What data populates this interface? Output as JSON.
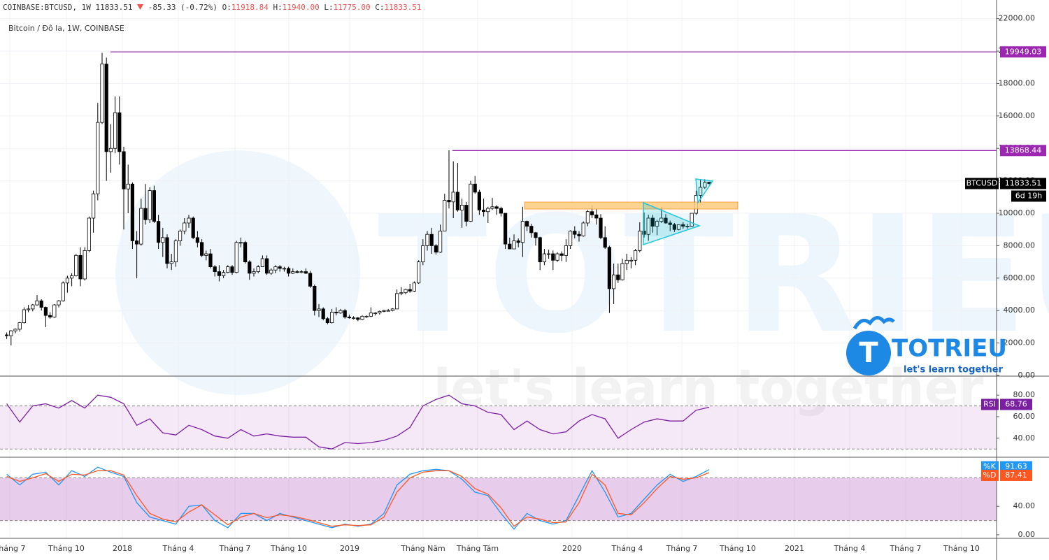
{
  "header": {
    "symbol": "COINBASE:BTCUSD, 1W",
    "price": "11833.51",
    "change": "-85.33 (-0.72%)",
    "ohlc": [
      {
        "key": "O:",
        "value": "11918.84"
      },
      {
        "key": "H:",
        "value": "11940.00"
      },
      {
        "key": "L:",
        "value": "11775.00"
      },
      {
        "key": "C:",
        "value": "11833.51"
      }
    ]
  },
  "logo": {
    "name": "TOTRIEU",
    "tagline": "let's learn together"
  },
  "chart_data": [
    {
      "type": "candlestick",
      "title": "Bitcoin / Đô la, 1W, COINBASE",
      "up_color": "#ffffff",
      "down_color": "#000000",
      "wick_color": "#000000",
      "candles": [
        [
          2500,
          2650,
          2250,
          2450
        ],
        [
          2450,
          2800,
          1850,
          2750
        ],
        [
          2750,
          2900,
          2600,
          2850
        ],
        [
          2850,
          3300,
          2700,
          3250
        ],
        [
          3250,
          4200,
          3200,
          4050
        ],
        [
          4050,
          4350,
          3900,
          4100
        ],
        [
          4100,
          4400,
          3950,
          4350
        ],
        [
          4350,
          4950,
          4300,
          4600
        ],
        [
          4600,
          4700,
          4000,
          4200
        ],
        [
          4200,
          4250,
          2980,
          3700
        ],
        [
          3700,
          3900,
          3500,
          3600
        ],
        [
          3600,
          4400,
          3550,
          4350
        ],
        [
          4350,
          4650,
          4200,
          4600
        ],
        [
          4600,
          5800,
          4550,
          5700
        ],
        [
          5700,
          6150,
          5100,
          6000
        ],
        [
          6000,
          6300,
          5500,
          6140
        ],
        [
          6140,
          7500,
          6100,
          7400
        ],
        [
          7400,
          7900,
          5500,
          5950
        ],
        [
          5950,
          7900,
          5850,
          7700
        ],
        [
          7700,
          9800,
          7600,
          9700
        ],
        [
          9700,
          11400,
          8800,
          11200
        ],
        [
          11200,
          16800,
          10800,
          15600
        ],
        [
          15600,
          19891,
          15500,
          19200
        ],
        [
          19200,
          19600,
          12000,
          13800
        ],
        [
          13800,
          15500,
          12500,
          14000
        ],
        [
          14000,
          17200,
          13700,
          16200
        ],
        [
          16200,
          17200,
          13000,
          13800
        ],
        [
          13800,
          14100,
          9000,
          11500
        ],
        [
          11500,
          13000,
          10000,
          11800
        ],
        [
          11800,
          11900,
          7800,
          8300
        ],
        [
          8300,
          8900,
          6000,
          8100
        ],
        [
          8100,
          10900,
          8000,
          10300
        ],
        [
          10300,
          11800,
          9300,
          9600
        ],
        [
          9600,
          11600,
          9400,
          11400
        ],
        [
          11400,
          11700,
          9400,
          9500
        ],
        [
          9500,
          9900,
          7800,
          8200
        ],
        [
          8200,
          9100,
          7300,
          8500
        ],
        [
          8500,
          8700,
          6600,
          6900
        ],
        [
          6900,
          7500,
          6500,
          7000
        ],
        [
          7000,
          8400,
          6700,
          8300
        ],
        [
          8300,
          9000,
          8000,
          8900
        ],
        [
          8900,
          9700,
          8700,
          9400
        ],
        [
          9400,
          9900,
          9100,
          9700
        ],
        [
          9700,
          9800,
          8400,
          8500
        ],
        [
          8500,
          8900,
          7900,
          8200
        ],
        [
          8200,
          8400,
          7300,
          7400
        ],
        [
          7400,
          7700,
          7100,
          7500
        ],
        [
          7500,
          7800,
          6600,
          6700
        ],
        [
          6700,
          6800,
          6100,
          6400
        ],
        [
          6400,
          6800,
          5800,
          6150
        ],
        [
          6150,
          6500,
          6000,
          6350
        ],
        [
          6350,
          6800,
          6300,
          6700
        ],
        [
          6700,
          6800,
          6200,
          6350
        ],
        [
          6350,
          8300,
          6300,
          8200
        ],
        [
          8200,
          8500,
          7900,
          8200
        ],
        [
          8200,
          8300,
          6900,
          7000
        ],
        [
          7000,
          7100,
          5900,
          6300
        ],
        [
          6300,
          6600,
          6100,
          6400
        ],
        [
          6400,
          6800,
          6300,
          6700
        ],
        [
          6700,
          7400,
          6700,
          7200
        ],
        [
          7200,
          7400,
          6200,
          6300
        ],
        [
          6300,
          6600,
          6200,
          6500
        ],
        [
          6500,
          6800,
          6300,
          6700
        ],
        [
          6700,
          6800,
          6400,
          6600
        ],
        [
          6600,
          6700,
          6400,
          6600
        ],
        [
          6600,
          6700,
          6100,
          6300
        ],
        [
          6300,
          6600,
          6250,
          6400
        ],
        [
          6400,
          6500,
          6300,
          6350
        ],
        [
          6350,
          6500,
          6300,
          6400
        ],
        [
          6400,
          6600,
          6250,
          6300
        ],
        [
          6300,
          6450,
          5400,
          5500
        ],
        [
          5500,
          5600,
          3700,
          4000
        ],
        [
          4000,
          4400,
          3600,
          4100
        ],
        [
          4100,
          4200,
          3400,
          3500
        ],
        [
          3500,
          3600,
          3150,
          3250
        ],
        [
          3250,
          4100,
          3200,
          3900
        ],
        [
          3900,
          4200,
          3700,
          3850
        ],
        [
          3850,
          4100,
          3800,
          4000
        ],
        [
          4000,
          4100,
          3500,
          3600
        ],
        [
          3600,
          3750,
          3500,
          3550
        ],
        [
          3550,
          3650,
          3450,
          3550
        ],
        [
          3550,
          3600,
          3350,
          3450
        ],
        [
          3450,
          3700,
          3400,
          3650
        ],
        [
          3650,
          3700,
          3550,
          3650
        ],
        [
          3650,
          4200,
          3600,
          3850
        ],
        [
          3850,
          3900,
          3700,
          3850
        ],
        [
          3850,
          4000,
          3750,
          3950
        ],
        [
          3950,
          4050,
          3900,
          4000
        ],
        [
          4000,
          4100,
          3950,
          4000
        ],
        [
          4000,
          4150,
          3950,
          4100
        ],
        [
          4100,
          5300,
          4100,
          5050
        ],
        [
          5050,
          5450,
          4950,
          5100
        ],
        [
          5100,
          5350,
          5000,
          5300
        ],
        [
          5300,
          5650,
          5100,
          5200
        ],
        [
          5200,
          5800,
          5150,
          5700
        ],
        [
          5700,
          7100,
          5650,
          7000
        ],
        [
          7000,
          8400,
          6800,
          8000
        ],
        [
          8000,
          8900,
          7700,
          8700
        ],
        [
          8700,
          9100,
          7500,
          8000
        ],
        [
          8000,
          8100,
          7450,
          7600
        ],
        [
          7600,
          9300,
          7550,
          8900
        ],
        [
          8900,
          11200,
          8900,
          10800
        ],
        [
          10800,
          13880,
          10300,
          10700
        ],
        [
          10700,
          13200,
          9700,
          11300
        ],
        [
          11300,
          13100,
          10100,
          10200
        ],
        [
          10200,
          10900,
          9100,
          10500
        ],
        [
          10500,
          10700,
          9200,
          9500
        ],
        [
          9500,
          12000,
          9450,
          11800
        ],
        [
          11800,
          12300,
          11200,
          11300
        ],
        [
          11300,
          11450,
          9900,
          10200
        ],
        [
          10200,
          10900,
          9800,
          10100
        ],
        [
          10100,
          10400,
          9400,
          10300
        ],
        [
          10300,
          10950,
          10200,
          10400
        ],
        [
          10400,
          10500,
          9900,
          10300
        ],
        [
          10300,
          10400,
          9800,
          10000
        ],
        [
          10000,
          10000,
          7800,
          8100
        ],
        [
          8100,
          8500,
          7800,
          7800
        ],
        [
          7800,
          8700,
          7800,
          8300
        ],
        [
          8300,
          8450,
          7900,
          8200
        ],
        [
          8200,
          10400,
          7300,
          9500
        ],
        [
          9500,
          9550,
          8900,
          9200
        ],
        [
          9200,
          9350,
          8500,
          8800
        ],
        [
          8800,
          8850,
          8000,
          8500
        ],
        [
          8500,
          8550,
          6500,
          7000
        ],
        [
          7000,
          7800,
          6800,
          7500
        ],
        [
          7500,
          7750,
          7200,
          7500
        ],
        [
          7500,
          7700,
          6500,
          7100
        ],
        [
          7100,
          7600,
          7000,
          7500
        ],
        [
          7500,
          7650,
          7050,
          7400
        ],
        [
          7400,
          8400,
          7000,
          8000
        ],
        [
          8000,
          8950,
          7800,
          8900
        ],
        [
          8900,
          9200,
          8450,
          8700
        ],
        [
          8700,
          8900,
          8250,
          8600
        ],
        [
          8600,
          9500,
          8550,
          9400
        ],
        [
          9400,
          10200,
          9200,
          10100
        ],
        [
          10100,
          10500,
          9700,
          9900
        ],
        [
          9900,
          10250,
          9300,
          9700
        ],
        [
          9700,
          9950,
          8400,
          8500
        ],
        [
          8500,
          9200,
          7800,
          7900
        ],
        [
          7900,
          8000,
          3850,
          5350
        ],
        [
          5350,
          6900,
          4400,
          6200
        ],
        [
          6200,
          6900,
          5700,
          5900
        ],
        [
          5900,
          7200,
          5850,
          6900
        ],
        [
          6900,
          7500,
          6500,
          7100
        ],
        [
          7100,
          7300,
          6600,
          7100
        ],
        [
          7100,
          7800,
          6800,
          7700
        ],
        [
          7700,
          9450,
          7600,
          8900
        ],
        [
          8900,
          10050,
          8500,
          8700
        ],
        [
          8700,
          9900,
          8300,
          9700
        ],
        [
          9700,
          9900,
          8800,
          9200
        ],
        [
          9200,
          9600,
          8650,
          9500
        ],
        [
          9500,
          10400,
          9400,
          9700
        ],
        [
          9700,
          9950,
          9350,
          9400
        ],
        [
          9400,
          9550,
          8900,
          9300
        ],
        [
          9300,
          9400,
          8850,
          9000
        ],
        [
          9000,
          9300,
          8950,
          9300
        ],
        [
          9300,
          9450,
          9050,
          9200
        ],
        [
          9200,
          9350,
          9050,
          9200
        ],
        [
          9200,
          10000,
          9150,
          10000
        ],
        [
          10000,
          11400,
          9900,
          11100
        ],
        [
          11100,
          12100,
          10600,
          11600
        ],
        [
          11600,
          12100,
          11500,
          11900
        ],
        [
          11918.84,
          11940,
          11775,
          11833.51
        ]
      ],
      "ylim": [
        0,
        23150
      ],
      "yticks": [
        {
          "value": 0,
          "label": "0.00"
        },
        {
          "value": 2000,
          "label": "2000.00"
        },
        {
          "value": 4000,
          "label": "4000.00"
        },
        {
          "value": 6000,
          "label": "6000.00"
        },
        {
          "value": 8000,
          "label": "8000.00"
        },
        {
          "value": 10000,
          "label": "10000.00"
        },
        {
          "value": 12000,
          "label": "12000.00"
        },
        {
          "value": 14000,
          "label": "14000.00"
        },
        {
          "value": 16000,
          "label": "16000.00"
        },
        {
          "value": 18000,
          "label": "18000.00"
        },
        {
          "value": 20000,
          "label": "20000.00"
        },
        {
          "value": 22000,
          "label": "22000.00"
        }
      ],
      "grid": true,
      "price_lines": [
        {
          "value": 19949.03,
          "color": "#9c27b0"
        },
        {
          "value": 13868.44,
          "color": "#9c27b0"
        }
      ],
      "last": {
        "name": "BTCUSD",
        "label": "11833.51",
        "countdown": "6d 19h"
      },
      "xticks": [
        "Tháng 7",
        "Tháng 10",
        "2018",
        "Tháng 4",
        "Tháng 7",
        "Tháng 10",
        "2019",
        "Tháng Năm",
        "Tháng Tám",
        "2020",
        "Tháng 4",
        "Tháng 7",
        "Tháng 10",
        "2021",
        "Tháng 4",
        "Tháng 7",
        "Tháng 10"
      ]
    },
    {
      "type": "line",
      "series": [
        {
          "name": "RSI",
          "color": "#7b1fa2",
          "values": [
            72,
            55,
            70,
            72,
            68,
            75,
            68,
            80,
            78,
            72,
            52,
            58,
            45,
            43,
            52,
            48,
            42,
            40,
            48,
            42,
            44,
            42,
            41,
            41,
            32,
            30,
            36,
            35,
            36,
            38,
            42,
            50,
            70,
            76,
            80,
            72,
            70,
            64,
            62,
            48,
            56,
            48,
            44,
            46,
            56,
            62,
            58,
            40,
            48,
            55,
            58,
            56,
            56,
            66,
            68.76
          ]
        }
      ],
      "ylim": [
        23,
        97
      ],
      "yticks": [
        {
          "value": 80,
          "label": "80.00"
        },
        {
          "value": 60,
          "label": "60.00"
        },
        {
          "value": 40,
          "label": "40.00"
        }
      ],
      "band": [
        30,
        70
      ],
      "band_color": "rgba(186,104,200,0.15)"
    },
    {
      "type": "line",
      "series": [
        {
          "name": "%K",
          "color": "#2196f3",
          "values": [
            85,
            70,
            85,
            88,
            70,
            90,
            82,
            95,
            88,
            82,
            45,
            25,
            20,
            15,
            40,
            42,
            20,
            10,
            30,
            30,
            20,
            30,
            25,
            20,
            15,
            10,
            15,
            12,
            15,
            30,
            70,
            85,
            90,
            92,
            90,
            78,
            60,
            55,
            30,
            8,
            30,
            20,
            15,
            20,
            55,
            90,
            60,
            25,
            30,
            50,
            70,
            85,
            75,
            82,
            91.63
          ]
        },
        {
          "name": "%D",
          "color": "#ff5722",
          "values": [
            82,
            75,
            80,
            86,
            75,
            85,
            84,
            90,
            90,
            84,
            55,
            30,
            22,
            18,
            32,
            42,
            28,
            14,
            25,
            30,
            24,
            28,
            26,
            22,
            17,
            12,
            14,
            13,
            14,
            25,
            60,
            80,
            88,
            90,
            90,
            82,
            65,
            57,
            38,
            12,
            25,
            22,
            17,
            18,
            45,
            85,
            70,
            30,
            28,
            45,
            65,
            82,
            78,
            80,
            87.41
          ]
        }
      ],
      "ylim": [
        -4,
        108
      ],
      "yticks": [
        {
          "value": 40,
          "label": "40.00"
        },
        {
          "value": 0,
          "label": "0.00"
        }
      ],
      "band": [
        20,
        80
      ],
      "band_color": "rgba(171,71,188,0.28)"
    }
  ]
}
